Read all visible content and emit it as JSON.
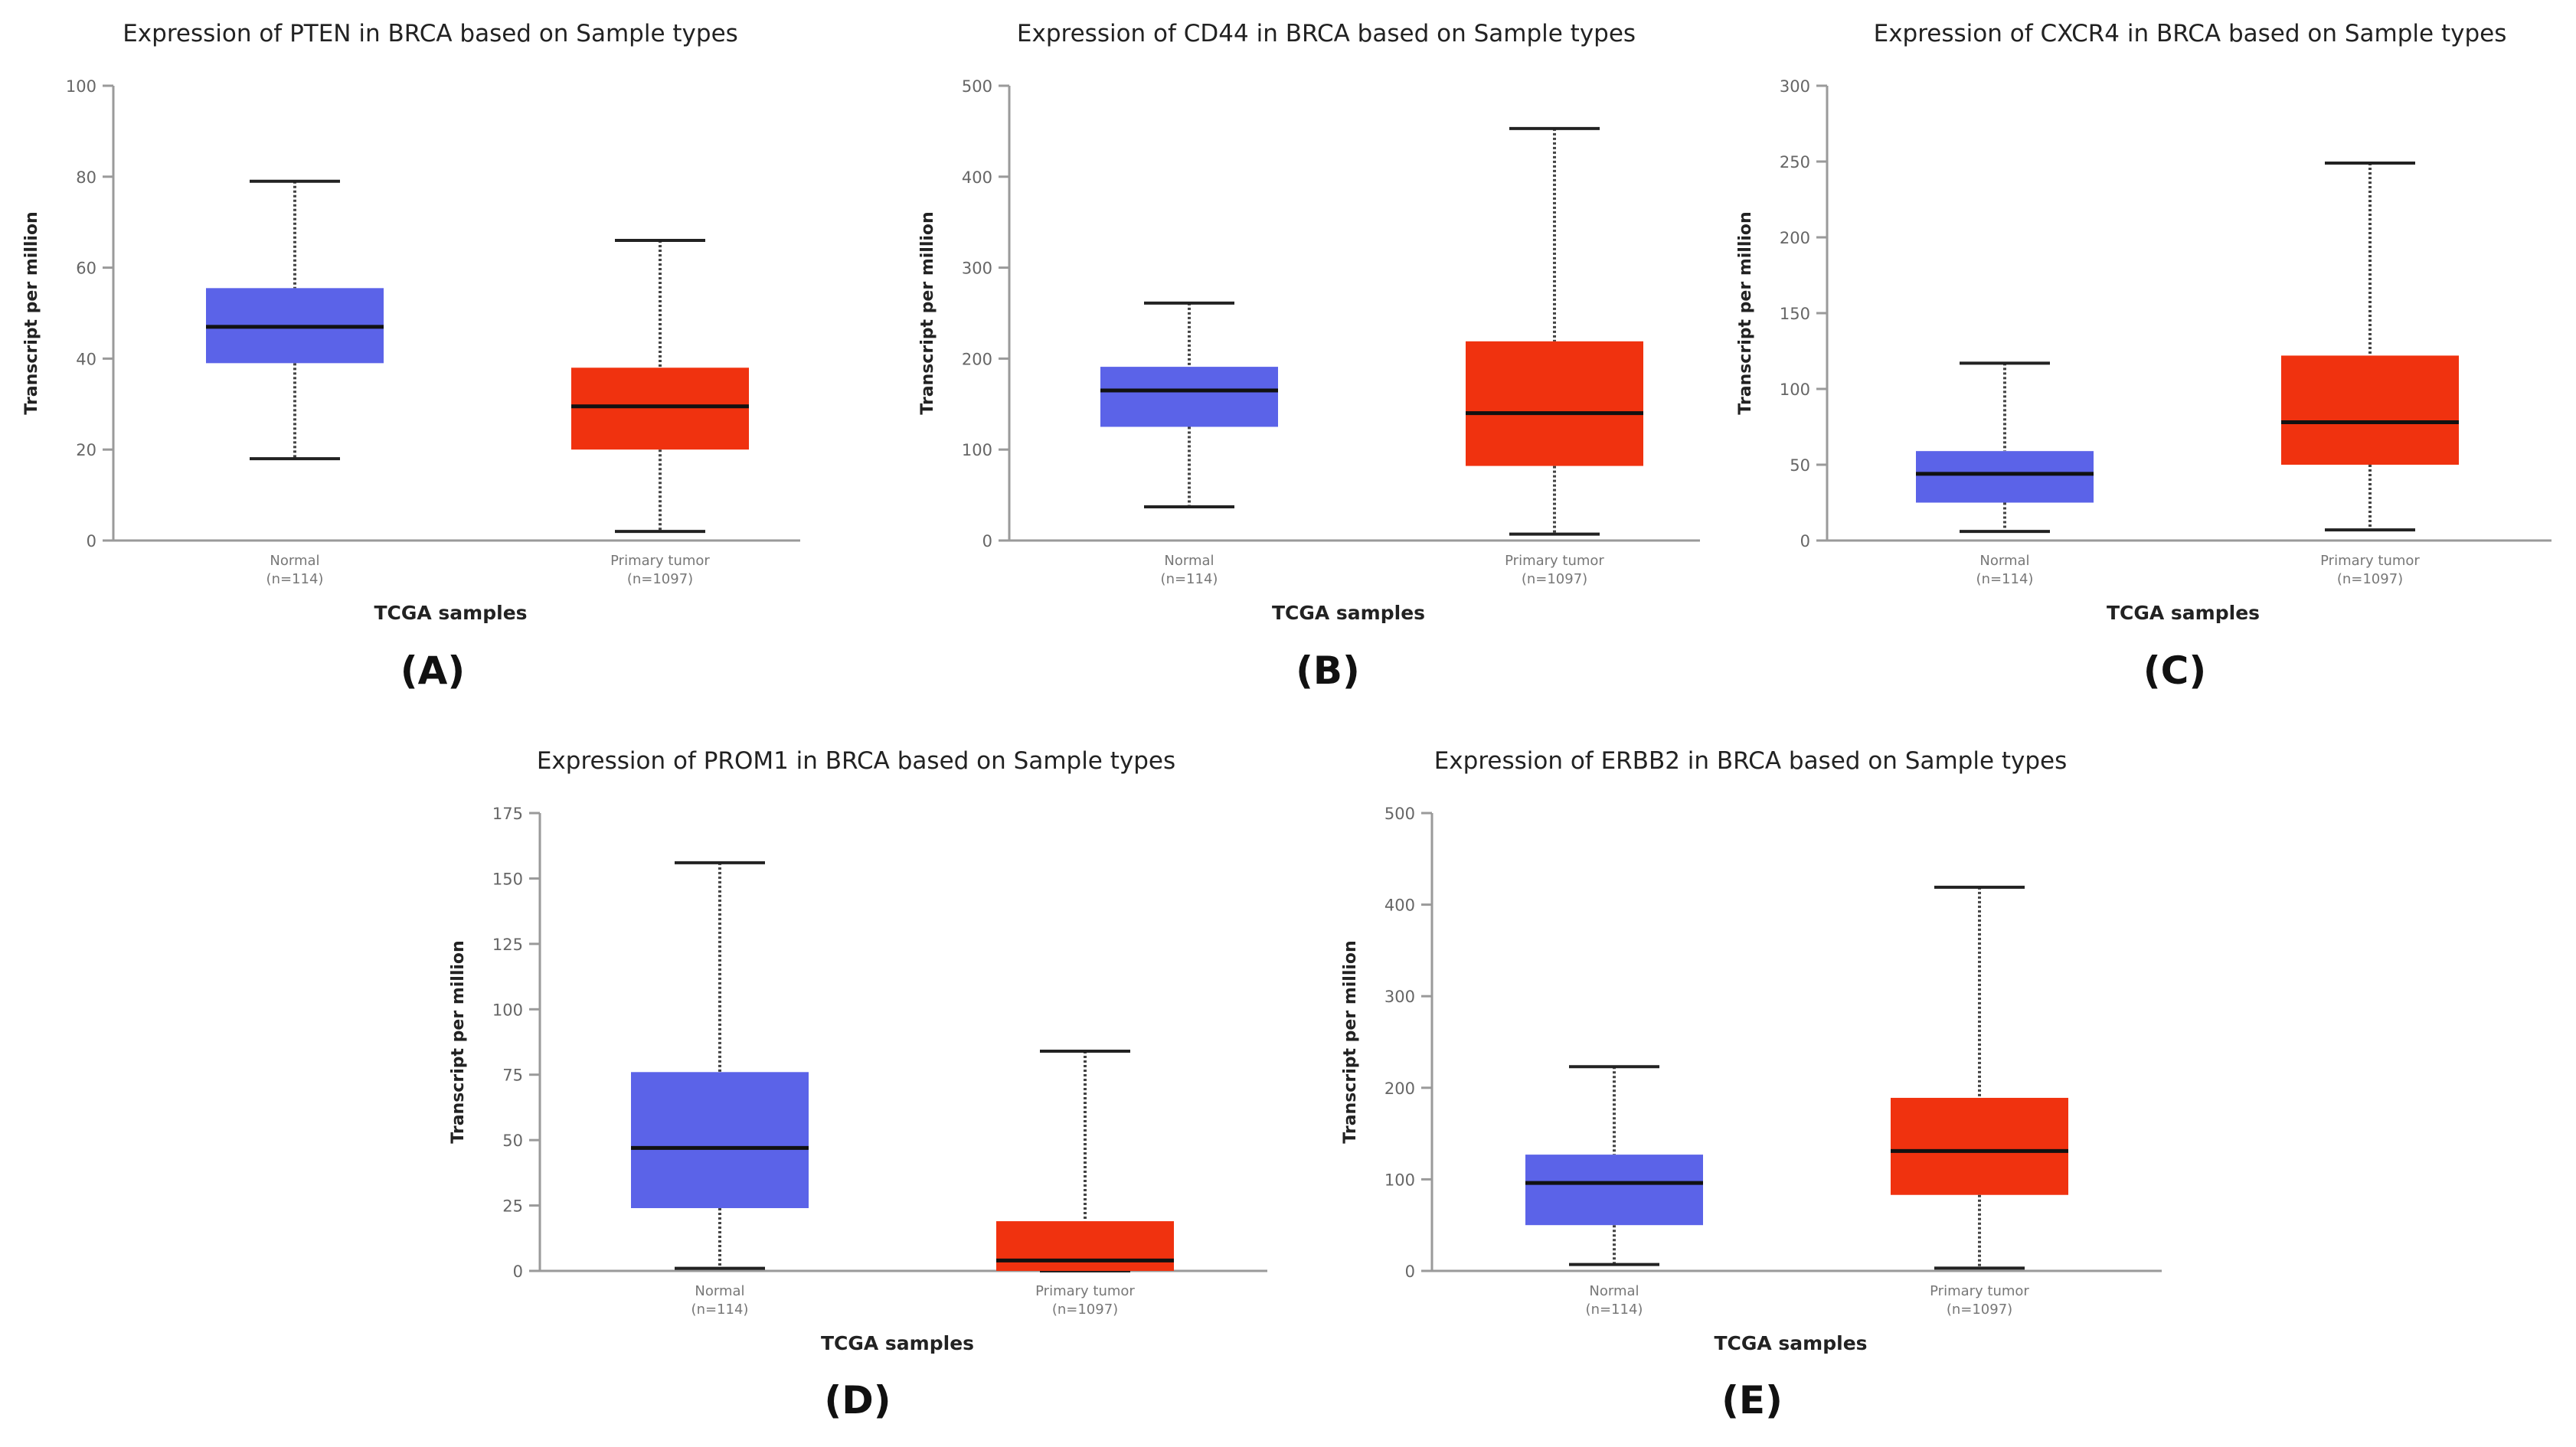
{
  "colors": {
    "normal": "#5b63e8",
    "tumor": "#f0320f",
    "axis": "#9a9a9a",
    "median": "#111111",
    "text": "#222222"
  },
  "chart_data": [
    {
      "panel_label": "(A)",
      "type": "box",
      "title": "Expression of PTEN in BRCA based on Sample types",
      "xlabel": "TCGA samples",
      "ylabel": "Transcript per million",
      "ylim": [
        0,
        100
      ],
      "yticks": [
        "0",
        "20",
        "40",
        "60",
        "80",
        "100"
      ],
      "categories": [
        {
          "name": "Normal",
          "n": "(n=114)",
          "min": 18,
          "q1": 39,
          "median": 47,
          "q3": 55.5,
          "max": 79,
          "color_key": "normal"
        },
        {
          "name": "Primary tumor",
          "n": "(n=1097)",
          "min": 2,
          "q1": 20,
          "median": 29.5,
          "q3": 38,
          "max": 66,
          "color_key": "tumor"
        }
      ]
    },
    {
      "panel_label": "(B)",
      "type": "box",
      "title": "Expression of CD44 in BRCA based on Sample types",
      "xlabel": "TCGA samples",
      "ylabel": "Transcript per million",
      "ylim": [
        0,
        500
      ],
      "yticks": [
        "0",
        "100",
        "200",
        "300",
        "400",
        "500"
      ],
      "categories": [
        {
          "name": "Normal",
          "n": "(n=114)",
          "min": 37,
          "q1": 125,
          "median": 165,
          "q3": 191,
          "max": 261,
          "color_key": "normal"
        },
        {
          "name": "Primary tumor",
          "n": "(n=1097)",
          "min": 7,
          "q1": 82,
          "median": 140,
          "q3": 219,
          "max": 453,
          "color_key": "tumor"
        }
      ]
    },
    {
      "panel_label": "(C)",
      "type": "box",
      "title": "Expression of CXCR4 in BRCA based on Sample types",
      "xlabel": "TCGA samples",
      "ylabel": "Transcript per million",
      "ylim": [
        0,
        300
      ],
      "yticks": [
        "0",
        "50",
        "100",
        "150",
        "200",
        "250",
        "300"
      ],
      "categories": [
        {
          "name": "Normal",
          "n": "(n=114)",
          "min": 6,
          "q1": 25,
          "median": 44,
          "q3": 59,
          "max": 117,
          "color_key": "normal"
        },
        {
          "name": "Primary tumor",
          "n": "(n=1097)",
          "min": 7,
          "q1": 50,
          "median": 78,
          "q3": 122,
          "max": 249,
          "color_key": "tumor"
        }
      ]
    },
    {
      "panel_label": "(D)",
      "type": "box",
      "title": "Expression of PROM1 in BRCA based on Sample types",
      "xlabel": "TCGA samples",
      "ylabel": "Transcript per million",
      "ylim": [
        0,
        175
      ],
      "yticks": [
        "0",
        "25",
        "50",
        "75",
        "100",
        "125",
        "150",
        "175"
      ],
      "categories": [
        {
          "name": "Normal",
          "n": "(n=114)",
          "min": 1,
          "q1": 24,
          "median": 47,
          "q3": 76,
          "max": 156,
          "color_key": "normal"
        },
        {
          "name": "Primary tumor",
          "n": "(n=1097)",
          "min": 0,
          "q1": 0,
          "median": 4,
          "q3": 19,
          "max": 84,
          "color_key": "tumor"
        }
      ]
    },
    {
      "panel_label": "(E)",
      "type": "box",
      "title": "Expression of ERBB2 in BRCA based on Sample types",
      "xlabel": "TCGA samples",
      "ylabel": "Transcript per million",
      "ylim": [
        0,
        500
      ],
      "yticks": [
        "0",
        "100",
        "200",
        "300",
        "400",
        "500"
      ],
      "categories": [
        {
          "name": "Normal",
          "n": "(n=114)",
          "min": 7,
          "q1": 50,
          "median": 96,
          "q3": 127,
          "max": 223,
          "color_key": "normal"
        },
        {
          "name": "Primary tumor",
          "n": "(n=1097)",
          "min": 3,
          "q1": 83,
          "median": 131,
          "q3": 189,
          "max": 419,
          "color_key": "tumor"
        }
      ]
    }
  ]
}
